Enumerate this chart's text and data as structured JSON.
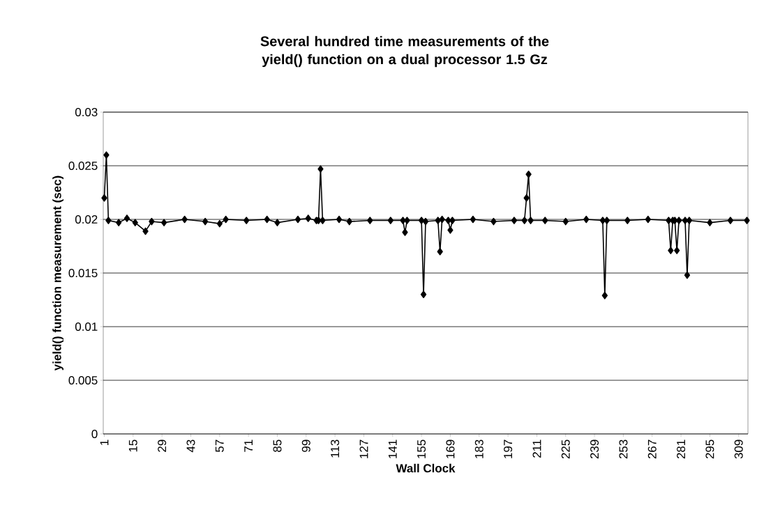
{
  "chart_data": {
    "type": "line",
    "title": "Several hundred time measurements of the yield() function on a dual processor 1.5 Gz",
    "xlabel": "Wall Clock",
    "ylabel": "yield() function measurement (sec)",
    "xlim": [
      0.5,
      313.5
    ],
    "xticks": [
      1,
      15,
      29,
      43,
      57,
      71,
      85,
      99,
      113,
      127,
      141,
      155,
      169,
      183,
      197,
      211,
      225,
      239,
      253,
      267,
      281,
      295,
      309
    ],
    "ylim": [
      0,
      0.03
    ],
    "yticks": [
      0,
      0.005,
      0.01,
      0.015,
      0.02,
      0.025,
      0.03
    ],
    "grid": "y",
    "legend": false,
    "marker": "diamond",
    "line_style": "solid",
    "series": [
      {
        "color": "#000000",
        "x": [
          1,
          2,
          3,
          8,
          12,
          16,
          21,
          24,
          30,
          40,
          50,
          57,
          60,
          70,
          80,
          85,
          95,
          100,
          104,
          105,
          106,
          107,
          115,
          120,
          130,
          140,
          146,
          147,
          148,
          155,
          156,
          157,
          163,
          164,
          165,
          168,
          169,
          170,
          180,
          190,
          200,
          205,
          206,
          207,
          208,
          215,
          225,
          235,
          243,
          244,
          245,
          255,
          265,
          275,
          276,
          277,
          278,
          279,
          280,
          283,
          284,
          285,
          295,
          305,
          313
        ],
        "values": [
          0.022,
          0.026,
          0.0199,
          0.0197,
          0.0201,
          0.0197,
          0.0189,
          0.0198,
          0.0197,
          0.02,
          0.0198,
          0.0196,
          0.02,
          0.0199,
          0.02,
          0.0197,
          0.02,
          0.0201,
          0.0199,
          0.0199,
          0.0247,
          0.0199,
          0.02,
          0.0198,
          0.0199,
          0.0199,
          0.0199,
          0.0188,
          0.0199,
          0.0199,
          0.013,
          0.0198,
          0.0199,
          0.017,
          0.02,
          0.0199,
          0.019,
          0.0199,
          0.02,
          0.0198,
          0.0199,
          0.0199,
          0.022,
          0.0242,
          0.0199,
          0.0199,
          0.0198,
          0.02,
          0.0199,
          0.0129,
          0.0199,
          0.0199,
          0.02,
          0.0199,
          0.0171,
          0.0199,
          0.0199,
          0.0171,
          0.0199,
          0.0199,
          0.0148,
          0.0199,
          0.0197,
          0.0199,
          0.0199
        ]
      }
    ]
  }
}
